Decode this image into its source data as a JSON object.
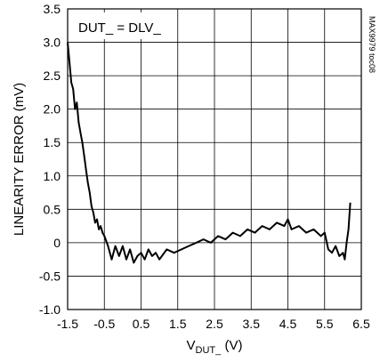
{
  "chart_data": {
    "type": "line",
    "annotation": "DUT_ = DLV_",
    "side_label": "MAX9979 toc08",
    "ylabel": "LINEARITY ERROR (mV)",
    "xlabel": {
      "main": "V",
      "subscript": "DUT_",
      "unit": " (V)"
    },
    "xlim": [
      -1.5,
      6.5
    ],
    "ylim": [
      -1.0,
      3.5
    ],
    "x_ticks": [
      -1.5,
      -0.5,
      0.5,
      1.5,
      2.5,
      3.5,
      4.5,
      5.5,
      6.5
    ],
    "x_tick_labels": [
      "-1.5",
      "-0.5",
      "0.5",
      "1.5",
      "2.5",
      "3.5",
      "4.5",
      "5.5",
      "6.5"
    ],
    "y_ticks": [
      -1.0,
      -0.5,
      0,
      0.5,
      1.0,
      1.5,
      2.0,
      2.5,
      3.0,
      3.5
    ],
    "y_tick_labels": [
      "-1.0",
      "-0.5",
      "0",
      "0.5",
      "1.0",
      "1.5",
      "2.0",
      "2.5",
      "3.0",
      "3.5"
    ],
    "grid": true,
    "series": [
      {
        "color": "#000000",
        "x": [
          -1.5,
          -1.45,
          -1.4,
          -1.35,
          -1.3,
          -1.25,
          -1.2,
          -1.15,
          -1.1,
          -1.05,
          -1.0,
          -0.95,
          -0.9,
          -0.85,
          -0.8,
          -0.75,
          -0.7,
          -0.65,
          -0.6,
          -0.55,
          -0.5,
          -0.4,
          -0.3,
          -0.2,
          -0.1,
          0.0,
          0.1,
          0.2,
          0.3,
          0.4,
          0.5,
          0.6,
          0.7,
          0.8,
          0.9,
          1.0,
          1.2,
          1.4,
          1.6,
          1.8,
          2.0,
          2.2,
          2.4,
          2.6,
          2.8,
          3.0,
          3.2,
          3.4,
          3.6,
          3.8,
          4.0,
          4.2,
          4.4,
          4.5,
          4.6,
          4.8,
          5.0,
          5.2,
          5.4,
          5.5,
          5.6,
          5.7,
          5.8,
          5.9,
          6.0,
          6.05,
          6.1,
          6.15,
          6.2
        ],
        "y": [
          3.0,
          2.7,
          2.4,
          2.3,
          2.0,
          2.1,
          1.8,
          1.65,
          1.5,
          1.3,
          1.1,
          0.9,
          0.75,
          0.55,
          0.45,
          0.3,
          0.35,
          0.2,
          0.25,
          0.15,
          0.1,
          -0.05,
          -0.25,
          -0.05,
          -0.2,
          -0.05,
          -0.25,
          -0.1,
          -0.3,
          -0.2,
          -0.15,
          -0.25,
          -0.1,
          -0.2,
          -0.15,
          -0.25,
          -0.1,
          -0.15,
          -0.1,
          -0.05,
          0.0,
          0.05,
          0.0,
          0.1,
          0.05,
          0.15,
          0.1,
          0.2,
          0.15,
          0.25,
          0.2,
          0.3,
          0.25,
          0.35,
          0.2,
          0.25,
          0.15,
          0.2,
          0.1,
          0.15,
          -0.1,
          -0.15,
          -0.05,
          -0.2,
          -0.15,
          -0.25,
          0.0,
          0.2,
          0.6
        ]
      }
    ]
  }
}
